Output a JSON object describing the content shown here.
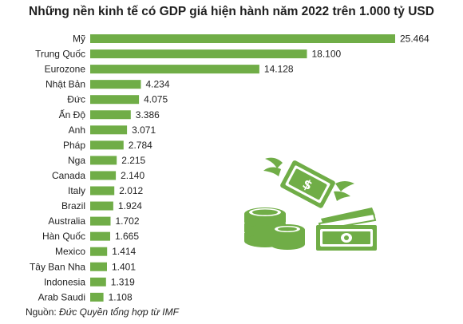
{
  "title": "Những nền kinh tế có GDP giá hiện hành năm 2022 trên 1.000 tỷ USD",
  "source_label": "Nguồn:",
  "source_text": "Đức Quyền tổng hợp từ IMF",
  "bar_color": "#70ad47",
  "icon_color": "#70ad47",
  "decoration_icons": [
    "flying-money-icon",
    "coin-stack-icon",
    "banknote-stack-icon"
  ],
  "chart_data": {
    "type": "bar",
    "orientation": "horizontal",
    "title": "Những nền kinh tế có GDP giá hiện hành năm 2022 trên 1.000 tỷ USD",
    "xlabel": "",
    "ylabel": "",
    "grid": false,
    "legend": "none",
    "xlim": [
      0,
      25464
    ],
    "categories": [
      "Mỹ",
      "Trung Quốc",
      "Eurozone",
      "Nhật Bản",
      "Đức",
      "Ấn Độ",
      "Anh",
      "Pháp",
      "Nga",
      "Canada",
      "Italy",
      "Brazil",
      "Australia",
      "Hàn Quốc",
      "Mexico",
      "Tây Ban Nha",
      "Indonesia",
      "Arab Saudi"
    ],
    "values": [
      25464,
      18100,
      14128,
      4234,
      4075,
      3386,
      3071,
      2784,
      2215,
      2140,
      2012,
      1924,
      1702,
      1665,
      1414,
      1401,
      1319,
      1108
    ],
    "value_labels": [
      "25.464",
      "18.100",
      "14.128",
      "4.234",
      "4.075",
      "3.386",
      "3.071",
      "2.784",
      "2.215",
      "2.140",
      "2.012",
      "1.924",
      "1.702",
      "1.665",
      "1.414",
      "1.401",
      "1.319",
      "1.108"
    ]
  }
}
